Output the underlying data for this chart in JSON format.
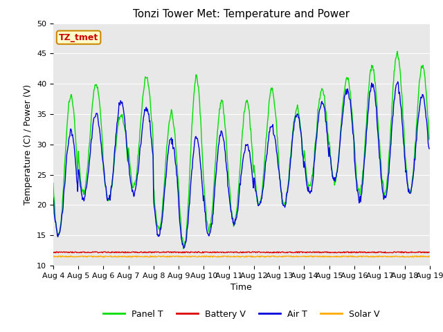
{
  "title": "Tonzi Tower Met: Temperature and Power",
  "xlabel": "Time",
  "ylabel": "Temperature (C) / Power (V)",
  "ylim": [
    10,
    50
  ],
  "yticks": [
    10,
    15,
    20,
    25,
    30,
    35,
    40,
    45,
    50
  ],
  "x_labels": [
    "Aug 4",
    "Aug 5",
    "Aug 6",
    "Aug 7",
    "Aug 8",
    "Aug 9",
    "Aug 10",
    "Aug 11",
    "Aug 12",
    "Aug 13",
    "Aug 14",
    "Aug 15",
    "Aug 16",
    "Aug 17",
    "Aug 18",
    "Aug 19"
  ],
  "annotation_text": "TZ_tmet",
  "annotation_color": "#cc0000",
  "annotation_bg": "#ffffcc",
  "annotation_border": "#cc8800",
  "panel_t_color": "#00dd00",
  "battery_v_color": "#dd0000",
  "air_t_color": "#0000dd",
  "solar_v_color": "#ffaa00",
  "bg_color": "#e8e8e8",
  "grid_color": "#ffffff",
  "title_fontsize": 11,
  "label_fontsize": 9,
  "tick_fontsize": 8
}
